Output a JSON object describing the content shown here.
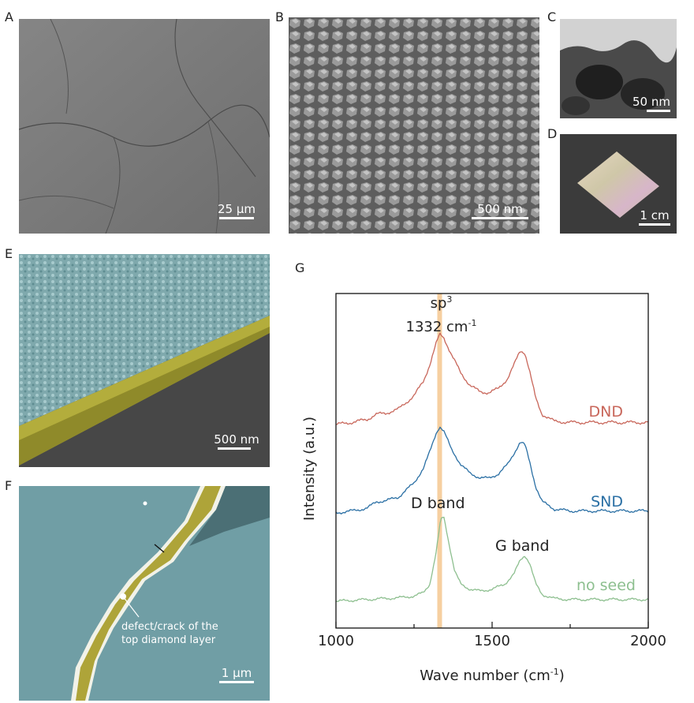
{
  "panels": {
    "A": {
      "label": "A",
      "scale": "25 μm"
    },
    "B": {
      "label": "B",
      "scale": "500 nm"
    },
    "C": {
      "label": "C",
      "scale": "50 nm"
    },
    "D": {
      "label": "D",
      "scale": "1 cm"
    },
    "E": {
      "label": "E",
      "scale": "500 nm"
    },
    "F": {
      "label": "F",
      "scale": "1 μm",
      "annotation_line1": "defect/crack of the",
      "annotation_line2": "top diamond layer"
    },
    "G": {
      "label": "G"
    }
  },
  "colors": {
    "DND": "#c8665a",
    "SND": "#2a6fa4",
    "no_seed": "#8dbf8f",
    "sp3_band": "#f6cfa0",
    "diamond_layer": "#b9b23a",
    "seed_tint": "#6f9ea6"
  },
  "chart_data": {
    "type": "line",
    "xlabel": "Wave number (cm",
    "xlabel_sup": "-1",
    "xlabel_suffix": ")",
    "ylabel": "Intensity (a.u.)",
    "xlim": [
      1000,
      2000
    ],
    "x_ticks": [
      1000,
      1500,
      2000
    ],
    "x_tick_labels": [
      "1000",
      "1500",
      "2000"
    ],
    "highlight": {
      "x": 1332,
      "label_line1": "sp",
      "label_line1_sup": "3",
      "label_line2": "1332 cm",
      "label_line2_sup": "-1"
    },
    "annotations": [
      {
        "text": "D band",
        "x": 1340
      },
      {
        "text": "G band",
        "x": 1600
      }
    ],
    "y_units": "arbitrary (offset traces)",
    "series": [
      {
        "name": "DND",
        "x": [
          1000,
          1050,
          1100,
          1130,
          1160,
          1200,
          1250,
          1280,
          1300,
          1320,
          1332,
          1345,
          1370,
          1400,
          1430,
          1460,
          1490,
          1520,
          1550,
          1570,
          1590,
          1605,
          1620,
          1640,
          1660,
          1700,
          1750,
          1800,
          1850,
          1900,
          1950,
          2000
        ],
        "y": [
          0.0,
          0.02,
          0.05,
          0.1,
          0.11,
          0.15,
          0.28,
          0.42,
          0.58,
          0.78,
          0.88,
          0.85,
          0.68,
          0.5,
          0.38,
          0.32,
          0.31,
          0.35,
          0.45,
          0.58,
          0.72,
          0.7,
          0.52,
          0.25,
          0.1,
          0.03,
          0.02,
          0.02,
          0.02,
          0.02,
          0.02,
          0.02
        ]
      },
      {
        "name": "SND",
        "x": [
          1000,
          1050,
          1100,
          1130,
          1160,
          1200,
          1250,
          1280,
          1300,
          1320,
          1332,
          1345,
          1370,
          1400,
          1430,
          1460,
          1490,
          1520,
          1550,
          1570,
          1590,
          1605,
          1620,
          1640,
          1660,
          1700,
          1750,
          1800,
          1850,
          1900,
          1950,
          2000
        ],
        "y": [
          0.0,
          0.02,
          0.05,
          0.12,
          0.13,
          0.17,
          0.32,
          0.48,
          0.65,
          0.85,
          0.93,
          0.88,
          0.68,
          0.52,
          0.42,
          0.38,
          0.37,
          0.42,
          0.52,
          0.64,
          0.76,
          0.73,
          0.55,
          0.28,
          0.12,
          0.04,
          0.02,
          0.02,
          0.02,
          0.02,
          0.02,
          0.02
        ]
      },
      {
        "name": "no seed",
        "x": [
          1000,
          1100,
          1200,
          1250,
          1280,
          1300,
          1320,
          1335,
          1345,
          1360,
          1380,
          1400,
          1430,
          1460,
          1500,
          1540,
          1570,
          1590,
          1605,
          1620,
          1640,
          1660,
          1700,
          1750,
          1800,
          1900,
          2000
        ],
        "y": [
          0.0,
          0.02,
          0.04,
          0.06,
          0.1,
          0.2,
          0.55,
          0.95,
          1.0,
          0.72,
          0.35,
          0.2,
          0.14,
          0.12,
          0.14,
          0.2,
          0.32,
          0.48,
          0.54,
          0.45,
          0.2,
          0.08,
          0.03,
          0.02,
          0.02,
          0.02,
          0.02
        ]
      }
    ]
  }
}
